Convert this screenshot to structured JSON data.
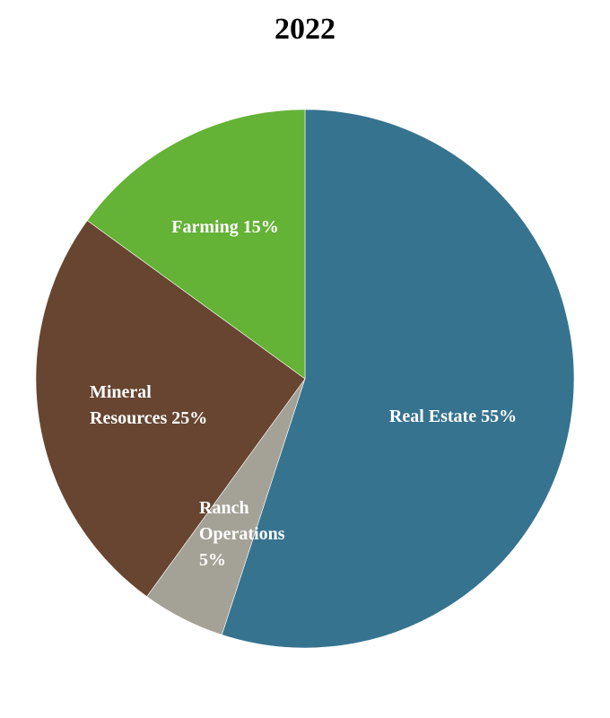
{
  "chart_data": {
    "type": "pie",
    "title": "2022",
    "slices": [
      {
        "label": "Real Estate",
        "value": 55,
        "color": "#36738f",
        "label_lines": [
          "Real Estate 55%"
        ]
      },
      {
        "label": "Ranch Operations",
        "value": 5,
        "color": "#a4a196",
        "label_lines": [
          "Ranch",
          "Operations",
          "5%"
        ]
      },
      {
        "label": "Mineral Resources",
        "value": 25,
        "color": "#674531",
        "label_lines": [
          "Mineral",
          "Resources 25%"
        ]
      },
      {
        "label": "Farming",
        "value": 15,
        "color": "#64b236",
        "label_lines": [
          "Farming 15%"
        ]
      }
    ],
    "start": "12 o'clock",
    "direction": "clockwise",
    "legend": "none"
  }
}
